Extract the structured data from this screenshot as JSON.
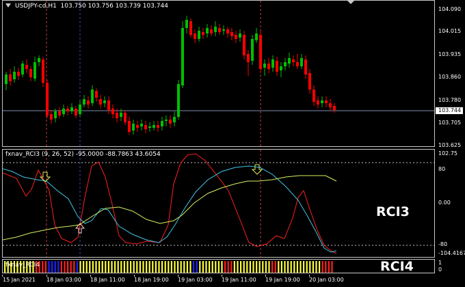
{
  "symbol_line": "USDJPY-cd,H1  103.750 103.756 103.739 103.744",
  "price_axis": [
    "104.090",
    "104.015",
    "103.935",
    "103.860",
    "103.780",
    "103.705",
    "103.625"
  ],
  "current_price": "103.744",
  "rci3": {
    "header": "fxnav_RCI3 (9, 26, 52) -95.0000 -88.7863 43.6054",
    "axis": [
      "102.75",
      "80",
      "0.00",
      "-80",
      "-104.4167"
    ],
    "label": "RCI3",
    "colors": {
      "fast": "#ff2020",
      "mid": "#40c8e8",
      "slow": "#d8f060",
      "arrow": "#d8f060",
      "arrow_up": "#ffd0c0"
    }
  },
  "rci4": {
    "header": "fxnav_RCI4",
    "axis": [
      "1",
      "0"
    ],
    "label": "RCI4",
    "colors": {
      "yellow": "#ffff40",
      "red": "#ff2020",
      "blue": "#2020ff"
    }
  },
  "time_axis": [
    "15 Jan 2021",
    "18 Jan 03:00",
    "18 Jan 11:00",
    "18 Jan 19:00",
    "19 Jan 03:00",
    "19 Jan 11:00",
    "19 Jan 19:00",
    "20 Jan 03:00"
  ],
  "chart_colors": {
    "bull": "#00c000",
    "bear": "#ff0000",
    "grid": "#707070",
    "bid": "#8090b0",
    "vline_red": "#c04040",
    "vline_blue": "#4040c0"
  }
}
